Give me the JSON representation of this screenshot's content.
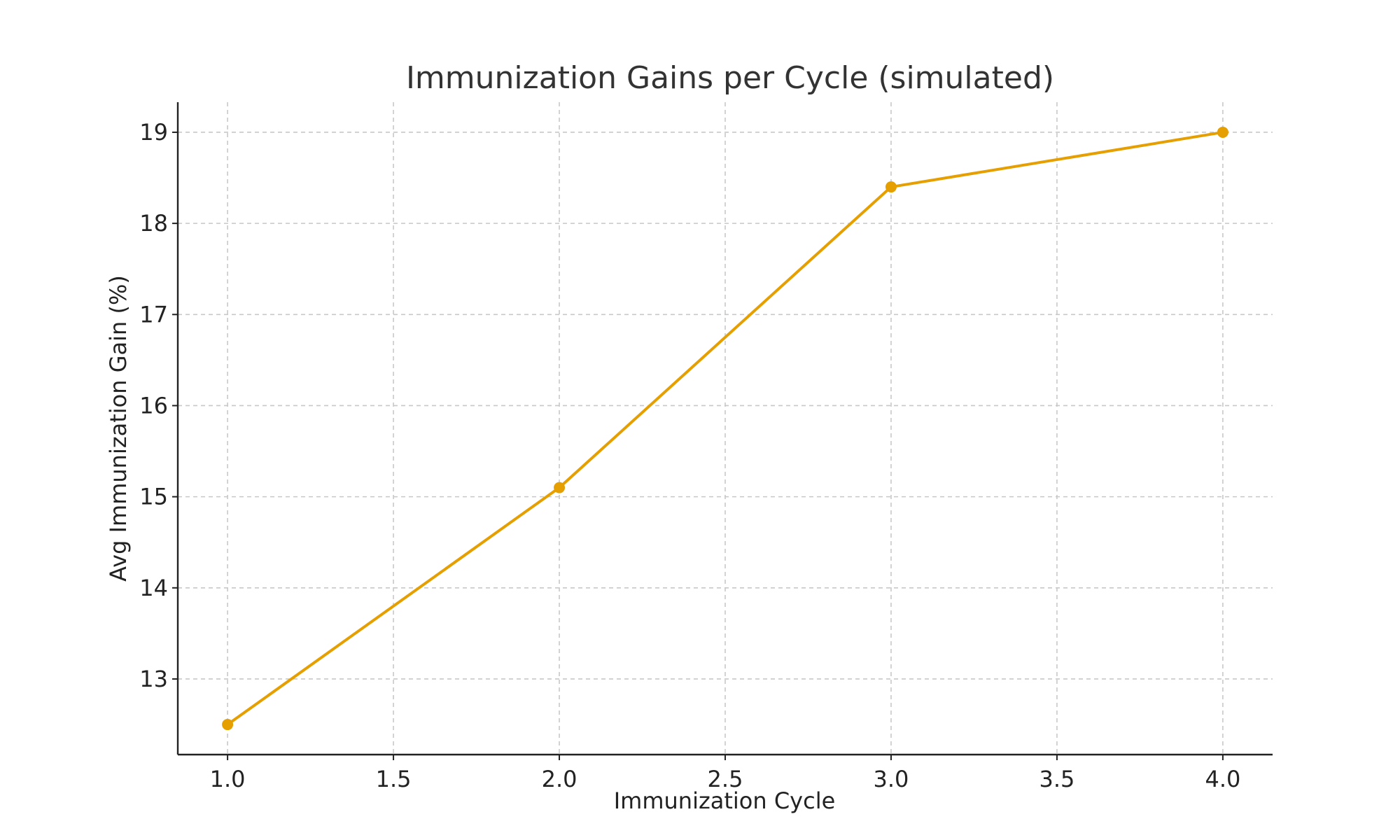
{
  "chart_data": {
    "type": "line",
    "title": "Immunization Gains per Cycle (simulated)",
    "xlabel": "Immunization Cycle",
    "ylabel": "Avg Immunization Gain (%)",
    "x": [
      1.0,
      2.0,
      3.0,
      4.0
    ],
    "series": [
      {
        "values": [
          12.5,
          15.1,
          18.4,
          19.0
        ],
        "color": "#e69f00",
        "marker": "circle"
      }
    ],
    "xlim": [
      0.85,
      4.15
    ],
    "ylim": [
      12.17,
      19.33
    ],
    "xticks": [
      1.0,
      1.5,
      2.0,
      2.5,
      3.0,
      3.5,
      4.0
    ],
    "xtick_labels": [
      "1.0",
      "1.5",
      "2.0",
      "2.5",
      "3.0",
      "3.5",
      "4.0"
    ],
    "yticks": [
      13,
      14,
      15,
      16,
      17,
      18,
      19
    ],
    "ytick_labels": [
      "13",
      "14",
      "15",
      "16",
      "17",
      "18",
      "19"
    ],
    "grid": true,
    "legend": "none"
  }
}
